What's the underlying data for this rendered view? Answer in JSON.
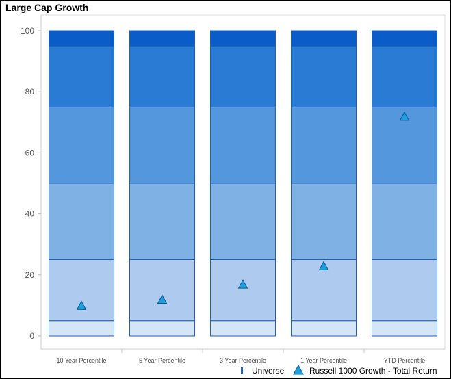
{
  "chart_data": {
    "type": "bar",
    "title": "Large Cap Growth",
    "ylim": [
      0,
      100
    ],
    "yticks": [
      0,
      20,
      40,
      60,
      80,
      100
    ],
    "categories": [
      "10 Year Percentile",
      "5 Year Percentile",
      "3 Year Percentile",
      "1 Year Percentile",
      "YTD Percentile"
    ],
    "universe_bands": [
      {
        "from": 0,
        "to": 5,
        "color": "#d4e5f7"
      },
      {
        "from": 5,
        "to": 25,
        "color": "#aecbef"
      },
      {
        "from": 25,
        "to": 50,
        "color": "#80b1e5"
      },
      {
        "from": 50,
        "to": 75,
        "color": "#5497dc"
      },
      {
        "from": 75,
        "to": 95,
        "color": "#2a7bd4"
      },
      {
        "from": 95,
        "to": 100,
        "color": "#0a5cc8"
      }
    ],
    "series": [
      {
        "name": "Russell 1000 Growth - Total Return",
        "values": [
          10,
          12,
          17,
          23,
          72
        ],
        "color": "#1a9fdc"
      }
    ],
    "legend": {
      "position": "bottom-right",
      "items": [
        {
          "label": "Universe",
          "color": "#1f5fb4"
        },
        {
          "label": "Russell 1000 Growth - Total Return",
          "color": "#1a9fdc"
        }
      ]
    },
    "grid": false
  }
}
